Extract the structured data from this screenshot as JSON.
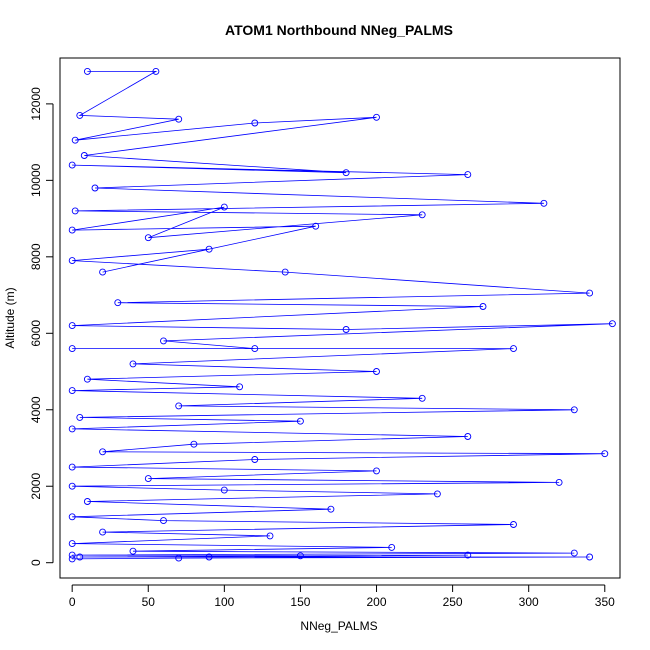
{
  "chart_data": {
    "type": "scatter",
    "title": "ATOM1 Northbound NNeg_PALMS",
    "xlabel": "NNeg_PALMS",
    "ylabel": "Altitude (m)",
    "xlim": [
      -8,
      360
    ],
    "ylim": [
      -400,
      13200
    ],
    "xticks": [
      0,
      50,
      100,
      150,
      200,
      250,
      300,
      350
    ],
    "yticks": [
      0,
      2000,
      4000,
      6000,
      8000,
      10000,
      12000
    ],
    "grid": false,
    "legend": "none",
    "series": [
      {
        "color": "#0000ff",
        "marker": "open-circle",
        "connected": true,
        "points": [
          [
            10,
            12850
          ],
          [
            55,
            12850
          ],
          [
            5,
            11700
          ],
          [
            70,
            11600
          ],
          [
            2,
            11050
          ],
          [
            120,
            11500
          ],
          [
            200,
            11650
          ],
          [
            8,
            10650
          ],
          [
            180,
            10200
          ],
          [
            0,
            10400
          ],
          [
            260,
            10150
          ],
          [
            15,
            9800
          ],
          [
            310,
            9400
          ],
          [
            2,
            9200
          ],
          [
            230,
            9100
          ],
          [
            50,
            8500
          ],
          [
            100,
            9300
          ],
          [
            0,
            8700
          ],
          [
            160,
            8800
          ],
          [
            20,
            7600
          ],
          [
            90,
            8200
          ],
          [
            0,
            7900
          ],
          [
            140,
            7600
          ],
          [
            340,
            7050
          ],
          [
            30,
            6800
          ],
          [
            270,
            6700
          ],
          [
            0,
            6200
          ],
          [
            180,
            6100
          ],
          [
            355,
            6250
          ],
          [
            60,
            5800
          ],
          [
            120,
            5600
          ],
          [
            0,
            5600
          ],
          [
            290,
            5600
          ],
          [
            40,
            5200
          ],
          [
            200,
            5000
          ],
          [
            10,
            4800
          ],
          [
            110,
            4600
          ],
          [
            0,
            4500
          ],
          [
            230,
            4300
          ],
          [
            70,
            4100
          ],
          [
            330,
            4000
          ],
          [
            5,
            3800
          ],
          [
            150,
            3700
          ],
          [
            0,
            3500
          ],
          [
            260,
            3300
          ],
          [
            80,
            3100
          ],
          [
            20,
            2900
          ],
          [
            350,
            2850
          ],
          [
            120,
            2700
          ],
          [
            0,
            2500
          ],
          [
            200,
            2400
          ],
          [
            50,
            2200
          ],
          [
            320,
            2100
          ],
          [
            0,
            2000
          ],
          [
            100,
            1900
          ],
          [
            240,
            1800
          ],
          [
            10,
            1600
          ],
          [
            170,
            1400
          ],
          [
            0,
            1200
          ],
          [
            60,
            1100
          ],
          [
            290,
            1000
          ],
          [
            20,
            800
          ],
          [
            130,
            700
          ],
          [
            0,
            500
          ],
          [
            210,
            400
          ],
          [
            40,
            300
          ],
          [
            330,
            250
          ],
          [
            0,
            200
          ],
          [
            150,
            180
          ],
          [
            90,
            150
          ],
          [
            260,
            200
          ],
          [
            5,
            150
          ],
          [
            340,
            150
          ],
          [
            70,
            120
          ],
          [
            0,
            100
          ]
        ]
      }
    ]
  }
}
